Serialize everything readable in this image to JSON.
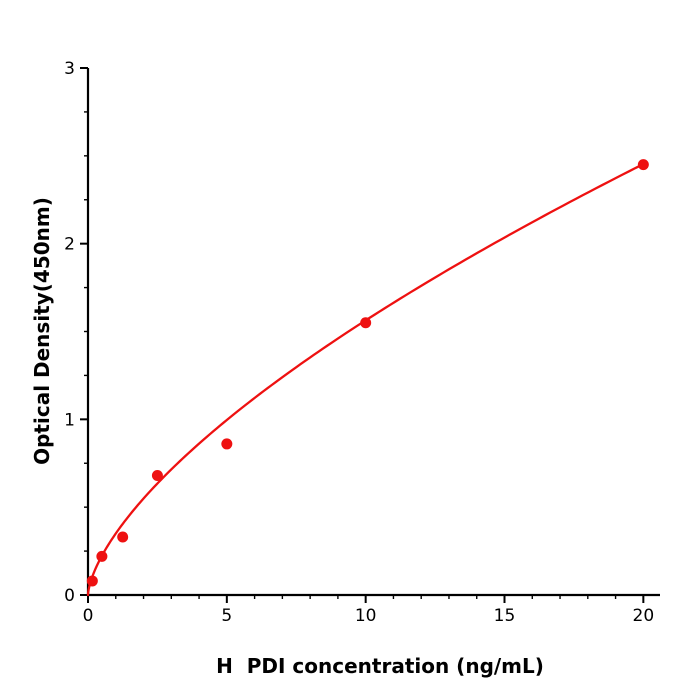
{
  "chart_data": {
    "type": "scatter",
    "title": "",
    "xlabel": "H  PDI concentration (ng/mL)",
    "ylabel": "Optical Density(450nm)",
    "series": [
      {
        "name": "standard-curve-points",
        "x": [
          0.156,
          0.5,
          1.25,
          2.5,
          5,
          10,
          20
        ],
        "y": [
          0.08,
          0.22,
          0.33,
          0.68,
          0.86,
          1.55,
          2.45
        ]
      }
    ],
    "fit_curve": {
      "type": "power",
      "a": 0.35,
      "b": 0.65,
      "x_start": 0,
      "x_end": 20
    },
    "xlim": [
      0,
      20.6
    ],
    "ylim": [
      0,
      3
    ],
    "x_ticks": [
      0,
      5,
      10,
      15,
      20
    ],
    "y_ticks": [
      0,
      1,
      2,
      3
    ],
    "x_minor_step": 1,
    "y_minor_step": 0.25,
    "grid": false,
    "legend_position": "none",
    "marker_color": "#ee1111",
    "line_color": "#ee1111",
    "axis_color": "#000000"
  }
}
